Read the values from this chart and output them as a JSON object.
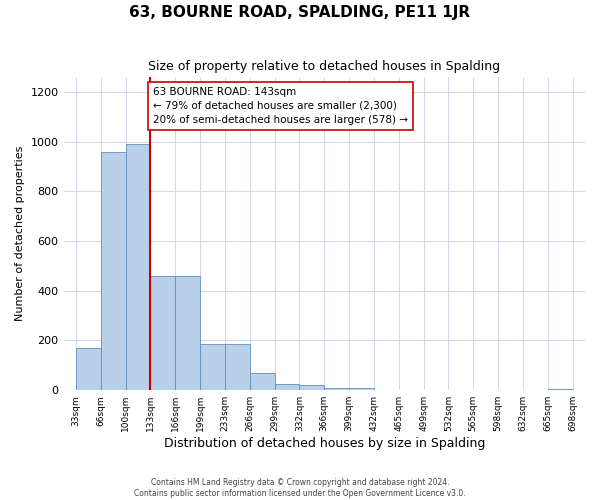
{
  "title": "63, BOURNE ROAD, SPALDING, PE11 1JR",
  "subtitle": "Size of property relative to detached houses in Spalding",
  "xlabel": "Distribution of detached houses by size in Spalding",
  "ylabel": "Number of detached properties",
  "bar_values": [
    170,
    960,
    990,
    460,
    460,
    185,
    185,
    70,
    25,
    20,
    10,
    10,
    1,
    0,
    0,
    0,
    0,
    0,
    0,
    5,
    0
  ],
  "bar_labels": [
    "33sqm",
    "66sqm",
    "100sqm",
    "133sqm",
    "166sqm",
    "199sqm",
    "233sqm",
    "266sqm",
    "299sqm",
    "332sqm",
    "366sqm",
    "399sqm",
    "432sqm",
    "465sqm",
    "499sqm",
    "532sqm",
    "565sqm",
    "598sqm",
    "632sqm",
    "665sqm",
    "698sqm"
  ],
  "bar_color": "#b8d0e8",
  "bar_edge_color": "#6090c0",
  "vline_x": 3,
  "vline_color": "#cc0000",
  "ylim": [
    0,
    1260
  ],
  "yticks": [
    0,
    200,
    400,
    600,
    800,
    1000,
    1200
  ],
  "annotation_box_text": "63 BOURNE ROAD: 143sqm\n← 79% of detached houses are smaller (2,300)\n20% of semi-detached houses are larger (578) →",
  "footer_line1": "Contains HM Land Registry data © Crown copyright and database right 2024.",
  "footer_line2": "Contains public sector information licensed under the Open Government Licence v3.0.",
  "background_color": "#ffffff",
  "grid_color": "#d0d8e8"
}
